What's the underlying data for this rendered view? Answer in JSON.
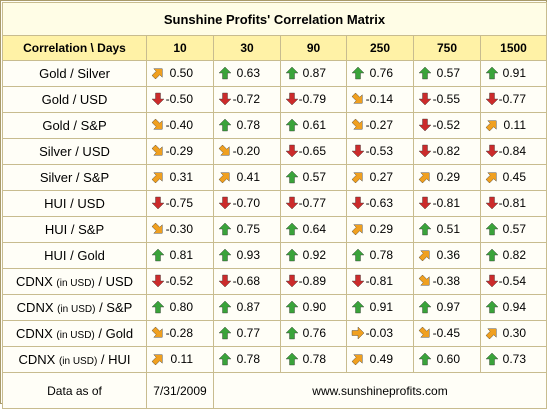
{
  "title": "Sunshine Profits' Correlation Matrix",
  "header": {
    "label": "Correlation \\ Days",
    "periods": [
      "10",
      "30",
      "90",
      "250",
      "750",
      "1500"
    ]
  },
  "colors": {
    "up": "#3aa33a",
    "down": "#cc2b2b",
    "diag": "#f0a020",
    "header_bg": "#fff2a6"
  },
  "rows": [
    {
      "pre": "Gold / Silver",
      "small": "",
      "post": "",
      "cells": [
        {
          "v": "0.50",
          "d": "ne"
        },
        {
          "v": "0.63",
          "d": "up"
        },
        {
          "v": "0.87",
          "d": "up"
        },
        {
          "v": "0.76",
          "d": "up"
        },
        {
          "v": "0.57",
          "d": "up"
        },
        {
          "v": "0.91",
          "d": "up"
        }
      ]
    },
    {
      "pre": "Gold / USD",
      "small": "",
      "post": "",
      "cells": [
        {
          "v": "-0.50",
          "d": "down"
        },
        {
          "v": "-0.72",
          "d": "down"
        },
        {
          "v": "-0.79",
          "d": "down"
        },
        {
          "v": "-0.14",
          "d": "se"
        },
        {
          "v": "-0.55",
          "d": "down"
        },
        {
          "v": "-0.77",
          "d": "down"
        }
      ]
    },
    {
      "pre": "Gold / S&P",
      "small": "",
      "post": "",
      "cells": [
        {
          "v": "-0.40",
          "d": "se"
        },
        {
          "v": "0.78",
          "d": "up"
        },
        {
          "v": "0.61",
          "d": "up"
        },
        {
          "v": "-0.27",
          "d": "se"
        },
        {
          "v": "-0.52",
          "d": "down"
        },
        {
          "v": "0.11",
          "d": "ne"
        }
      ]
    },
    {
      "pre": "Silver / USD",
      "small": "",
      "post": "",
      "cells": [
        {
          "v": "-0.29",
          "d": "se"
        },
        {
          "v": "-0.20",
          "d": "se"
        },
        {
          "v": "-0.65",
          "d": "down"
        },
        {
          "v": "-0.53",
          "d": "down"
        },
        {
          "v": "-0.82",
          "d": "down"
        },
        {
          "v": "-0.84",
          "d": "down"
        }
      ]
    },
    {
      "pre": "Silver / S&P",
      "small": "",
      "post": "",
      "cells": [
        {
          "v": "0.31",
          "d": "ne"
        },
        {
          "v": "0.41",
          "d": "ne"
        },
        {
          "v": "0.57",
          "d": "up"
        },
        {
          "v": "0.27",
          "d": "ne"
        },
        {
          "v": "0.29",
          "d": "ne"
        },
        {
          "v": "0.45",
          "d": "ne"
        }
      ]
    },
    {
      "pre": "HUI / USD",
      "small": "",
      "post": "",
      "cells": [
        {
          "v": "-0.75",
          "d": "down"
        },
        {
          "v": "-0.70",
          "d": "down"
        },
        {
          "v": "-0.77",
          "d": "down"
        },
        {
          "v": "-0.63",
          "d": "down"
        },
        {
          "v": "-0.81",
          "d": "down"
        },
        {
          "v": "-0.81",
          "d": "down"
        }
      ]
    },
    {
      "pre": "HUI / S&P",
      "small": "",
      "post": "",
      "cells": [
        {
          "v": "-0.30",
          "d": "se"
        },
        {
          "v": "0.75",
          "d": "up"
        },
        {
          "v": "0.64",
          "d": "up"
        },
        {
          "v": "0.29",
          "d": "ne"
        },
        {
          "v": "0.51",
          "d": "up"
        },
        {
          "v": "0.57",
          "d": "up"
        }
      ]
    },
    {
      "pre": "HUI / Gold",
      "small": "",
      "post": "",
      "cells": [
        {
          "v": "0.81",
          "d": "up"
        },
        {
          "v": "0.93",
          "d": "up"
        },
        {
          "v": "0.92",
          "d": "up"
        },
        {
          "v": "0.78",
          "d": "up"
        },
        {
          "v": "0.36",
          "d": "ne"
        },
        {
          "v": "0.82",
          "d": "up"
        }
      ]
    },
    {
      "pre": "CDNX ",
      "small": "(in USD)",
      "post": " / USD",
      "cells": [
        {
          "v": "-0.52",
          "d": "down"
        },
        {
          "v": "-0.68",
          "d": "down"
        },
        {
          "v": "-0.89",
          "d": "down"
        },
        {
          "v": "-0.81",
          "d": "down"
        },
        {
          "v": "-0.38",
          "d": "se"
        },
        {
          "v": "-0.54",
          "d": "down"
        }
      ]
    },
    {
      "pre": "CDNX ",
      "small": "(in USD)",
      "post": " / S&P",
      "cells": [
        {
          "v": "0.80",
          "d": "up"
        },
        {
          "v": "0.87",
          "d": "up"
        },
        {
          "v": "0.90",
          "d": "up"
        },
        {
          "v": "0.91",
          "d": "up"
        },
        {
          "v": "0.97",
          "d": "up"
        },
        {
          "v": "0.94",
          "d": "up"
        }
      ]
    },
    {
      "pre": "CDNX ",
      "small": "(in USD)",
      "post": " / Gold",
      "cells": [
        {
          "v": "-0.28",
          "d": "se"
        },
        {
          "v": "0.77",
          "d": "up"
        },
        {
          "v": "0.76",
          "d": "up"
        },
        {
          "v": "-0.03",
          "d": "right"
        },
        {
          "v": "-0.45",
          "d": "se"
        },
        {
          "v": "0.30",
          "d": "ne"
        }
      ]
    },
    {
      "pre": "CDNX ",
      "small": "(in USD)",
      "post": " / HUI",
      "cells": [
        {
          "v": "0.11",
          "d": "ne"
        },
        {
          "v": "0.78",
          "d": "up"
        },
        {
          "v": "0.78",
          "d": "up"
        },
        {
          "v": "0.49",
          "d": "ne"
        },
        {
          "v": "0.60",
          "d": "up"
        },
        {
          "v": "0.73",
          "d": "up"
        }
      ]
    }
  ],
  "footer": {
    "label": "Data as of",
    "date": "7/31/2009",
    "site": "www.sunshineprofits.com"
  }
}
